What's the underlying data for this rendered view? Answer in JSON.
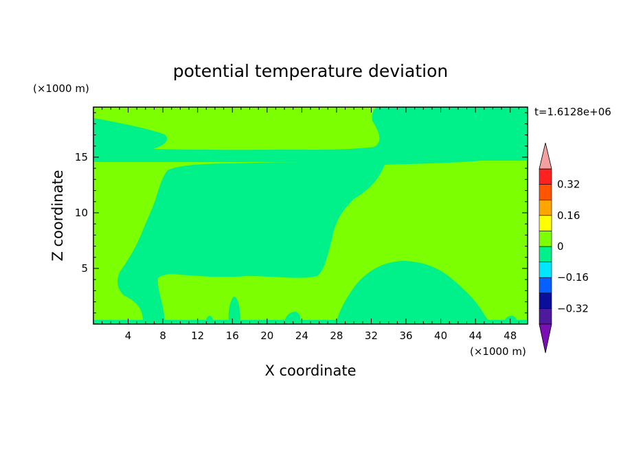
{
  "chart_data": {
    "type": "heatmap",
    "title": "potential temperature deviation",
    "xlabel": "X coordinate",
    "ylabel": "Z coordinate",
    "x_unit": "(×1000 m)",
    "y_unit": "(×1000 m)",
    "time_label": "t=1.6128e+06",
    "xlim": [
      0,
      50
    ],
    "ylim": [
      0,
      19.5
    ],
    "x_ticks": [
      4,
      8,
      12,
      16,
      20,
      24,
      28,
      32,
      36,
      40,
      44,
      48
    ],
    "y_ticks": [
      5,
      10,
      15
    ],
    "colorbar": {
      "levels": [
        -0.4,
        -0.32,
        -0.24,
        -0.16,
        -0.08,
        0,
        0.08,
        0.16,
        0.24,
        0.32,
        0.4
      ],
      "colors": [
        "#7a0fb4",
        "#4c1a9a",
        "#0a0f9b",
        "#0560ff",
        "#00e6ff",
        "#00f08a",
        "#7cff00",
        "#ffff00",
        "#ffa500",
        "#ff5500",
        "#ff2020",
        "#f5a0a0"
      ],
      "labeled_ticks": [
        {
          "value": 0.32,
          "label": "0.32"
        },
        {
          "value": 0.16,
          "label": "0.16"
        },
        {
          "value": 0,
          "label": "0"
        },
        {
          "value": -0.16,
          "label": "−0.16"
        },
        {
          "value": -0.32,
          "label": "−0.32"
        }
      ],
      "extend": "both"
    },
    "regions": [
      {
        "level_range": [
          0,
          0.08
        ],
        "desc": "background"
      },
      {
        "level_range": [
          -0.08,
          0
        ],
        "desc": "upper layer z 15-19.5 with cutouts"
      },
      {
        "level_range": [
          -0.08,
          0
        ],
        "desc": "central region x 5-32 z 4-15"
      },
      {
        "level_range": [
          -0.08,
          0
        ],
        "desc": "dome x 28-45 z 0-6"
      },
      {
        "level_range": [
          -0.08,
          0
        ],
        "desc": "near-surface layer z 0-0.3"
      }
    ]
  }
}
